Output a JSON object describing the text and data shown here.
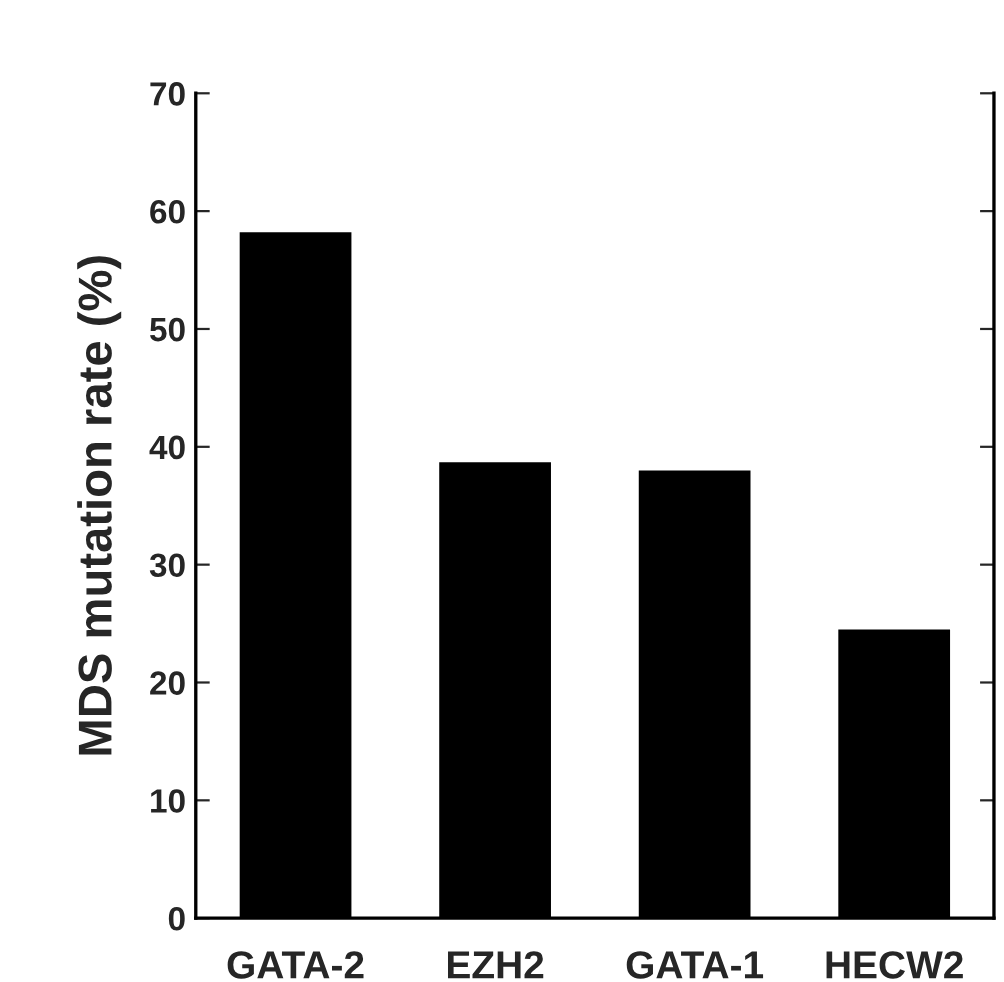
{
  "chart_data": {
    "type": "bar",
    "ylabel": "MDS mutation rate (%)",
    "categories": [
      "GATA-2",
      "EZH2",
      "GATA-1",
      "HECW2"
    ],
    "values": [
      58.2,
      38.7,
      38.0,
      24.5
    ],
    "color": "#000000",
    "ylim": [
      0,
      70
    ],
    "yticks": [
      0,
      10,
      20,
      30,
      40,
      50,
      60,
      70
    ],
    "grid": false
  }
}
